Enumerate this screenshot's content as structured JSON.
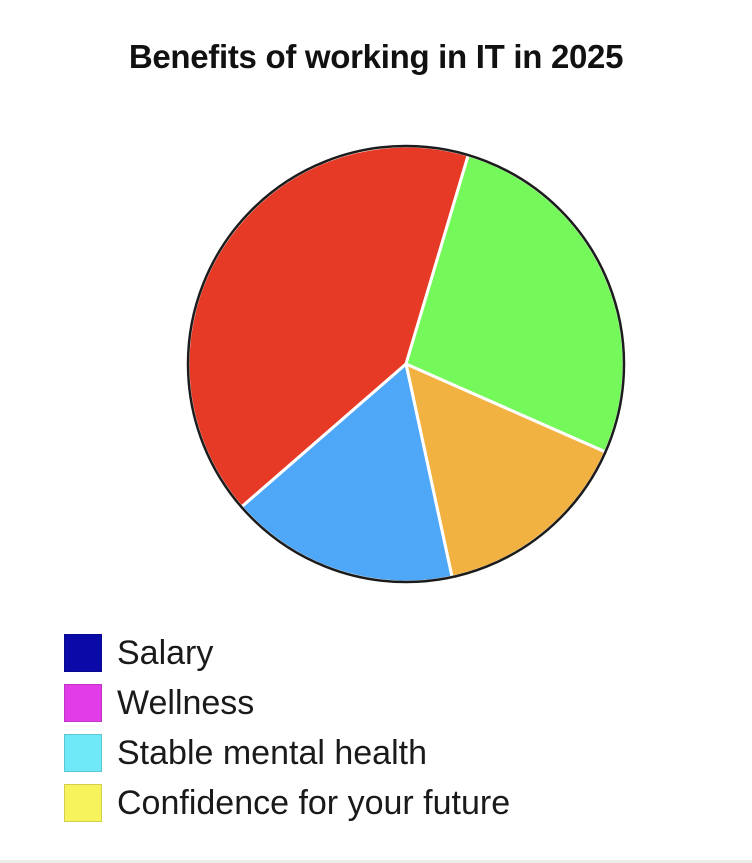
{
  "chart_data": {
    "type": "pie",
    "title": "Benefits of working in IT in 2025",
    "slices": [
      {
        "color": "#e73a26",
        "value": 41,
        "start_deg": 229
      },
      {
        "color": "#75f95a",
        "value": 27
      },
      {
        "color": "#f2b241",
        "value": 15
      },
      {
        "color": "#4fa7f7",
        "value": 17
      }
    ],
    "legend_position": "bottom-left",
    "legend": [
      {
        "label": "Salary",
        "color": "#0a0aa8"
      },
      {
        "label": "Wellness",
        "color": "#e13ce8"
      },
      {
        "label": "Stable mental health",
        "color": "#6fe9f7"
      },
      {
        "label": "Confidence for your future",
        "color": "#f7f35c"
      }
    ]
  }
}
